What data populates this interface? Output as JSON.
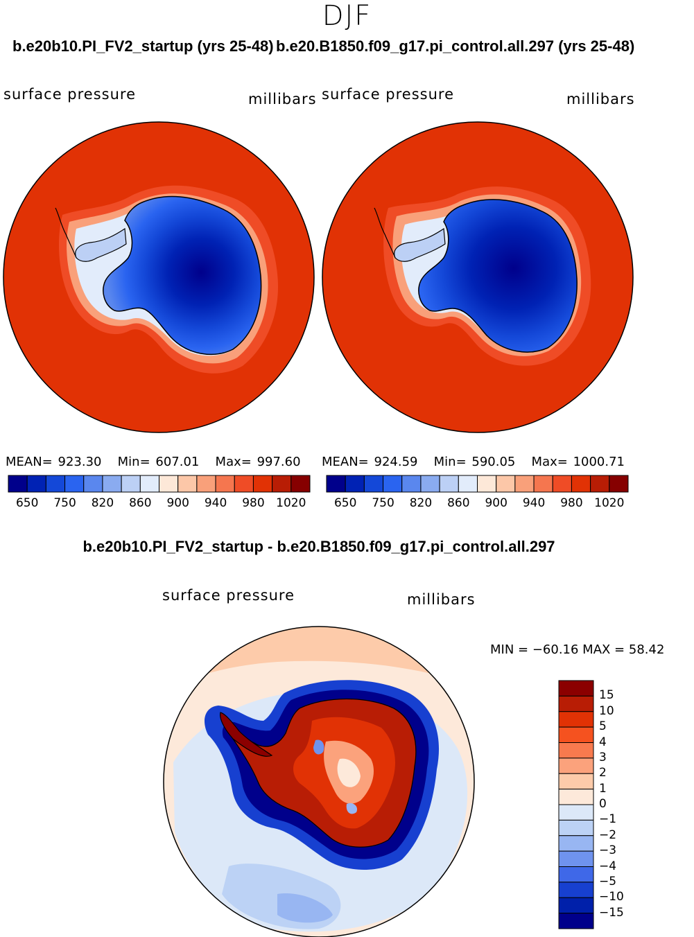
{
  "season": "DJF",
  "panels": [
    {
      "case_title": "b.e20b10.PI_FV2_startup (yrs 25-48)",
      "variable": "surface pressure",
      "units": "millibars",
      "mean_label": "MEAN= 923.30",
      "min_label": "Min= 607.01",
      "max_label": "Max= 997.60"
    },
    {
      "case_title": "b.e20.B1850.f09_g17.pi_control.all.297 (yrs 25-48)",
      "variable": "surface pressure",
      "units": "millibars",
      "mean_label": "MEAN= 924.59",
      "min_label": "Min= 590.05",
      "max_label": "Max= 1000.71"
    }
  ],
  "colorbar": {
    "colors": [
      "#00008b",
      "#0022b4",
      "#1448d8",
      "#2a64f0",
      "#5a87ee",
      "#8aabf0",
      "#bcd0f5",
      "#e2ecfb",
      "#fde8d8",
      "#fcc7a8",
      "#f9a07a",
      "#f5764f",
      "#ef4c26",
      "#e13205",
      "#b81d05",
      "#860000"
    ],
    "tick_labels": [
      "650",
      "750",
      "820",
      "860",
      "900",
      "940",
      "980",
      "1020"
    ]
  },
  "difference": {
    "title": "b.e20b10.PI_FV2_startup - b.e20.B1850.f09_g17.pi_control.all.297",
    "variable": "surface pressure",
    "units": "millibars",
    "minmax_label": "MIN = −60.16 MAX = 58.42",
    "colorbar_colors": [
      "#8b0000",
      "#b81d05",
      "#e13205",
      "#f5521f",
      "#f87a4e",
      "#fba27c",
      "#fdcbaa",
      "#fde9da",
      "#dce8f8",
      "#bcd2f5",
      "#98b6f2",
      "#6f93ee",
      "#3f68e8",
      "#1740d0",
      "#0020aa",
      "#00008b"
    ],
    "tick_labels": [
      "15",
      "10",
      "5",
      "4",
      "3",
      "2",
      "1",
      "0",
      "−1",
      "−2",
      "−3",
      "−4",
      "−5",
      "−10",
      "−15"
    ]
  },
  "chart_data": [
    {
      "type": "heatmap",
      "title": "b.e20b10.PI_FV2_startup (yrs 25-48)",
      "variable": "surface pressure",
      "units": "millibars",
      "stats": {
        "mean": 923.3,
        "min": 607.01,
        "max": 997.6
      },
      "contour_levels": [
        650,
        700,
        750,
        800,
        820,
        840,
        860,
        880,
        900,
        920,
        940,
        960,
        980,
        1000,
        1020
      ]
    },
    {
      "type": "heatmap",
      "title": "b.e20.B1850.f09_g17.pi_control.all.297 (yrs 25-48)",
      "variable": "surface pressure",
      "units": "millibars",
      "stats": {
        "mean": 924.59,
        "min": 590.05,
        "max": 1000.71
      },
      "contour_levels": [
        650,
        700,
        750,
        800,
        820,
        840,
        860,
        880,
        900,
        920,
        940,
        960,
        980,
        1000,
        1020
      ]
    },
    {
      "type": "heatmap",
      "title": "b.e20b10.PI_FV2_startup - b.e20.B1850.f09_g17.pi_control.all.297",
      "variable": "surface pressure",
      "units": "millibars",
      "stats": {
        "min": -60.16,
        "max": 58.42
      },
      "contour_levels": [
        15,
        10,
        5,
        4,
        3,
        2,
        1,
        0,
        -1,
        -2,
        -3,
        -4,
        -5,
        -10,
        -15
      ]
    }
  ]
}
